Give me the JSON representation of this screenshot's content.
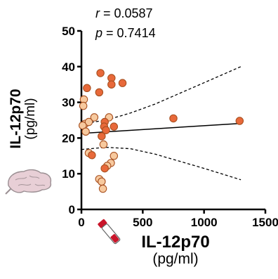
{
  "annotations": {
    "r_symbol": "r",
    "r_value": " = 0.0587",
    "p_symbol": "p",
    "p_value": " = 0.7414"
  },
  "icons": [
    "brain-icon",
    "blood-tube-icon"
  ],
  "colors": {
    "point_dark": "#e8693a",
    "point_mid": "#f2a06a",
    "point_light": "#f7c99e",
    "point_outline": "#a85020",
    "axis": "#000000"
  },
  "chart_data": {
    "type": "scatter",
    "xlabel": "IL-12p70",
    "xlabel_unit": "(pg/ml)",
    "ylabel": "IL-12p70",
    "ylabel_unit": "(pg/ml)",
    "xlim": [
      0,
      1500
    ],
    "ylim": [
      0,
      50
    ],
    "xticks": [
      0,
      500,
      1000,
      1500
    ],
    "yticks": [
      0,
      10,
      20,
      30,
      40,
      50
    ],
    "grid": false,
    "legend": "none",
    "points": [
      {
        "x": 155,
        "y": 38.2,
        "shade": "dark"
      },
      {
        "x": 245,
        "y": 36.8,
        "shade": "dark"
      },
      {
        "x": 335,
        "y": 35.4,
        "shade": "dark"
      },
      {
        "x": 245,
        "y": 35.0,
        "shade": "dark"
      },
      {
        "x": 45,
        "y": 34.0,
        "shade": "dark"
      },
      {
        "x": 145,
        "y": 32.8,
        "shade": "dark"
      },
      {
        "x": 20,
        "y": 30.8,
        "shade": "light"
      },
      {
        "x": 15,
        "y": 29.0,
        "shade": "light"
      },
      {
        "x": 105,
        "y": 25.8,
        "shade": "light"
      },
      {
        "x": 225,
        "y": 25.8,
        "shade": "light"
      },
      {
        "x": 750,
        "y": 25.5,
        "shade": "dark"
      },
      {
        "x": 30,
        "y": 24.0,
        "shade": "light"
      },
      {
        "x": 60,
        "y": 24.5,
        "shade": "light"
      },
      {
        "x": 190,
        "y": 24.5,
        "shade": "dark"
      },
      {
        "x": 1290,
        "y": 24.8,
        "shade": "dark"
      },
      {
        "x": 10,
        "y": 23.5,
        "shade": "light"
      },
      {
        "x": 185,
        "y": 23.2,
        "shade": "dark"
      },
      {
        "x": 265,
        "y": 23.2,
        "shade": "dark"
      },
      {
        "x": 200,
        "y": 22.2,
        "shade": "dark"
      },
      {
        "x": 35,
        "y": 21.8,
        "shade": "light"
      },
      {
        "x": 165,
        "y": 20.5,
        "shade": "dark"
      },
      {
        "x": 180,
        "y": 18.2,
        "shade": "light"
      },
      {
        "x": 60,
        "y": 15.8,
        "shade": "light"
      },
      {
        "x": 85,
        "y": 15.2,
        "shade": "dark"
      },
      {
        "x": 265,
        "y": 15.0,
        "shade": "light"
      },
      {
        "x": 240,
        "y": 13.0,
        "shade": "light"
      },
      {
        "x": 210,
        "y": 12.2,
        "shade": "light"
      },
      {
        "x": 190,
        "y": 11.5,
        "shade": "dark"
      },
      {
        "x": 145,
        "y": 8.5,
        "shade": "light"
      },
      {
        "x": 165,
        "y": 7.8,
        "shade": "light"
      },
      {
        "x": 175,
        "y": 5.8,
        "shade": "light"
      }
    ],
    "fit_line": {
      "x": [
        0,
        1300
      ],
      "y": [
        21.3,
        24.1
      ]
    },
    "ci_upper": {
      "x": [
        0,
        200,
        400,
        600,
        800,
        1000,
        1300
      ],
      "y": [
        24.0,
        25.0,
        27.0,
        29.5,
        32.5,
        35.5,
        40.0
      ]
    },
    "ci_lower": {
      "x": [
        0,
        200,
        400,
        600,
        800,
        1000,
        1300
      ],
      "y": [
        16.8,
        17.4,
        17.0,
        15.5,
        13.5,
        11.5,
        8.3
      ]
    }
  }
}
